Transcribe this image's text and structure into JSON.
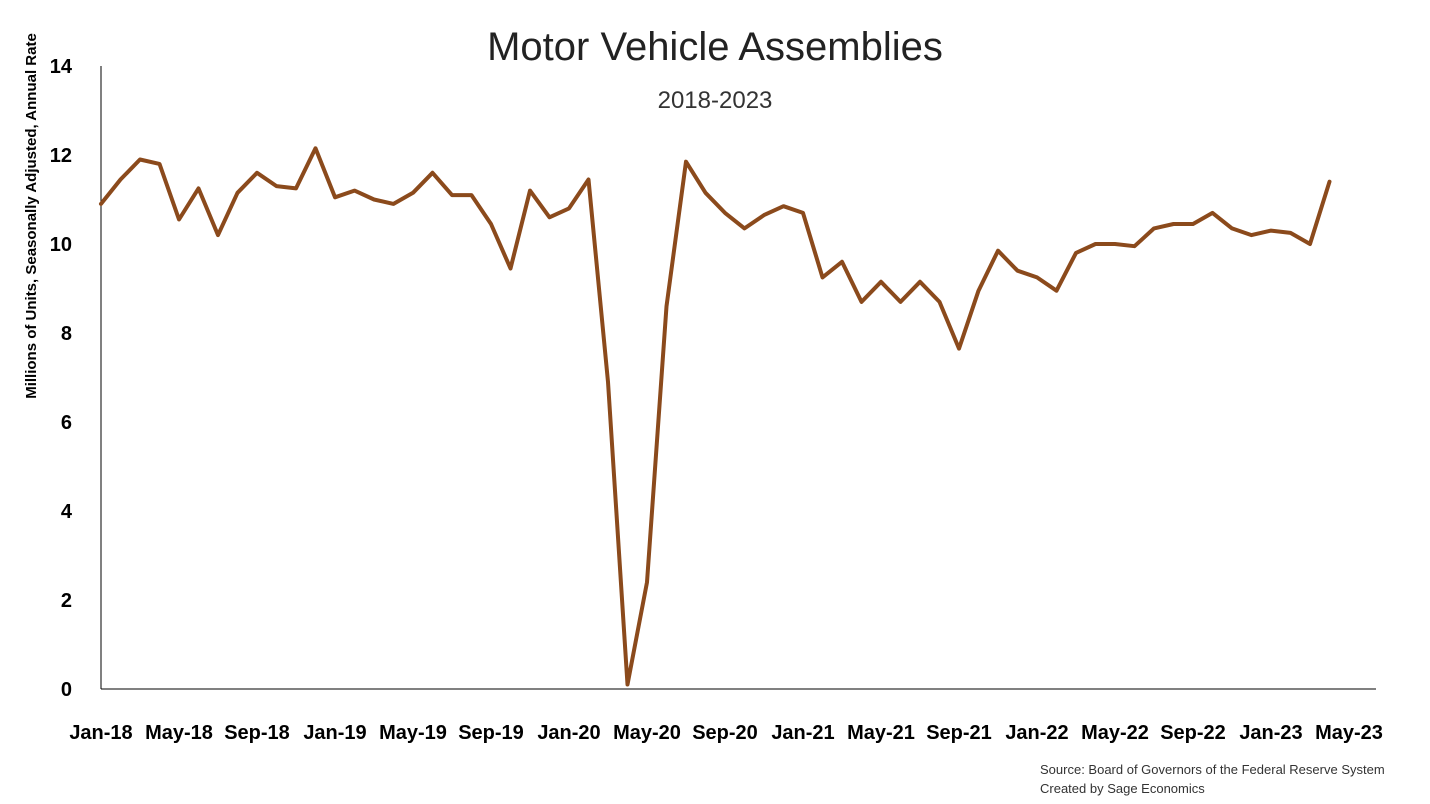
{
  "chart_data": {
    "type": "line",
    "title": "Motor Vehicle Assemblies",
    "subtitle": "2018-2023",
    "ylabel": "Millions of Units, Seasonally Adjusted, Annual Rate",
    "xlabel": "",
    "ylim": [
      0,
      14
    ],
    "yticks": [
      "0",
      "2",
      "4",
      "6",
      "8",
      "10",
      "12",
      "14"
    ],
    "xtick_labels": [
      "Jan-18",
      "May-18",
      "Sep-18",
      "Jan-19",
      "May-19",
      "Sep-19",
      "Jan-20",
      "May-20",
      "Sep-20",
      "Jan-21",
      "May-21",
      "Sep-21",
      "Jan-22",
      "May-22",
      "Sep-22",
      "Jan-23",
      "May-23"
    ],
    "grid": false,
    "legend": "none",
    "line_color": "#8B4A1C",
    "x": [
      "Jan-18",
      "Feb-18",
      "Mar-18",
      "Apr-18",
      "May-18",
      "Jun-18",
      "Jul-18",
      "Aug-18",
      "Sep-18",
      "Oct-18",
      "Nov-18",
      "Dec-18",
      "Jan-19",
      "Feb-19",
      "Mar-19",
      "Apr-19",
      "May-19",
      "Jun-19",
      "Jul-19",
      "Aug-19",
      "Sep-19",
      "Oct-19",
      "Nov-19",
      "Dec-19",
      "Jan-20",
      "Feb-20",
      "Mar-20",
      "Apr-20",
      "May-20",
      "Jun-20",
      "Jul-20",
      "Aug-20",
      "Sep-20",
      "Oct-20",
      "Nov-20",
      "Dec-20",
      "Jan-21",
      "Feb-21",
      "Mar-21",
      "Apr-21",
      "May-21",
      "Jun-21",
      "Jul-21",
      "Aug-21",
      "Sep-21",
      "Oct-21",
      "Nov-21",
      "Dec-21",
      "Jan-22",
      "Feb-22",
      "Mar-22",
      "Apr-22",
      "May-22",
      "Jun-22",
      "Jul-22",
      "Aug-22",
      "Sep-22",
      "Oct-22",
      "Nov-22",
      "Dec-22",
      "Jan-23",
      "Feb-23",
      "Mar-23",
      "Apr-23"
    ],
    "series": [
      {
        "values": [
          10.9,
          11.45,
          11.9,
          11.8,
          10.55,
          11.25,
          10.2,
          11.15,
          11.6,
          11.3,
          11.25,
          12.15,
          11.05,
          11.2,
          11.0,
          10.9,
          11.15,
          11.6,
          11.1,
          11.1,
          10.45,
          9.45,
          11.2,
          10.6,
          10.8,
          11.45,
          6.9,
          0.1,
          2.4,
          8.6,
          11.85,
          11.15,
          10.7,
          10.35,
          10.65,
          10.85,
          10.7,
          9.25,
          9.6,
          8.7,
          9.15,
          8.7,
          9.15,
          8.7,
          7.65,
          8.95,
          9.85,
          9.4,
          9.25,
          8.95,
          9.8,
          10.0,
          10.0,
          9.95,
          10.35,
          10.45,
          10.45,
          10.7,
          10.35,
          10.2,
          10.3,
          10.25,
          10.0,
          11.4
        ]
      }
    ]
  },
  "source": {
    "line1": "Source: Board of Governors of the Federal Reserve System",
    "line2": "Created by Sage Economics"
  }
}
